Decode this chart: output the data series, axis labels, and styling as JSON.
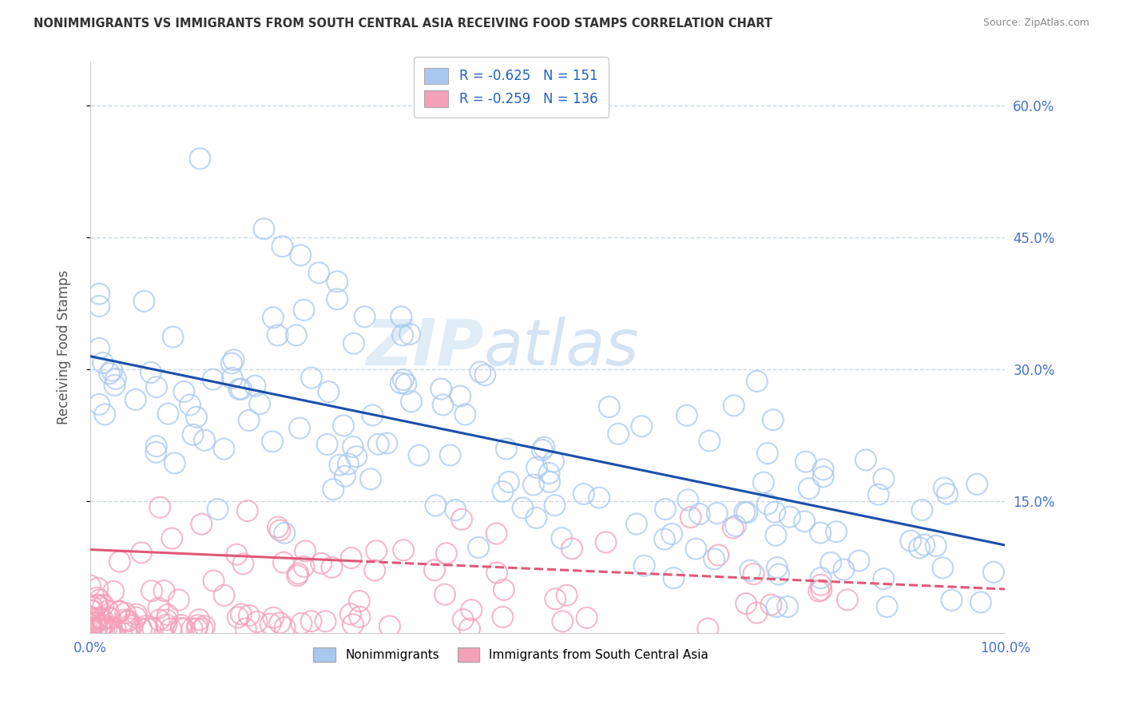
{
  "title": "NONIMMIGRANTS VS IMMIGRANTS FROM SOUTH CENTRAL ASIA RECEIVING FOOD STAMPS CORRELATION CHART",
  "source": "Source: ZipAtlas.com",
  "ylabel": "Receiving Food Stamps",
  "y_ticks_right": [
    0.15,
    0.3,
    0.45,
    0.6
  ],
  "y_tick_labels_right": [
    "15.0%",
    "30.0%",
    "45.0%",
    "60.0%"
  ],
  "xlim": [
    0.0,
    1.0
  ],
  "ylim": [
    0.0,
    0.65
  ],
  "blue_R": -0.625,
  "blue_N": 151,
  "pink_R": -0.259,
  "pink_N": 136,
  "blue_color": "#a8c8f0",
  "pink_color": "#f4a0b8",
  "blue_line_color": "#1a4faa",
  "pink_line_color": "#e05878",
  "legend_label_blue": "Nonimmigrants",
  "legend_label_pink": "Immigrants from South Central Asia",
  "watermark_zip": "ZIP",
  "watermark_atlas": "atlas",
  "background_color": "#ffffff",
  "grid_color": "#c8d8e8",
  "title_color": "#333333",
  "axis_label_color": "#4472c4",
  "legend_R_color": "#2060c0"
}
